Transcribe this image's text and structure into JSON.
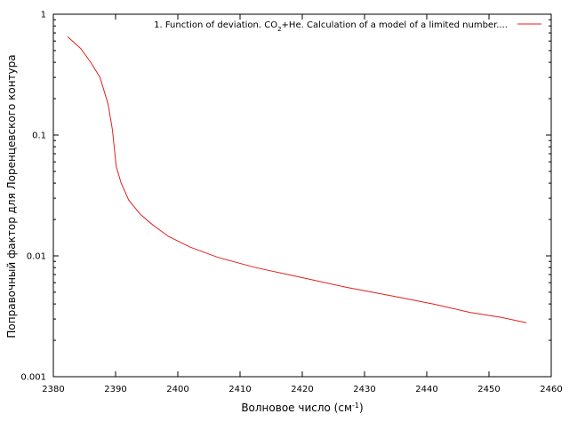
{
  "colors": {
    "background": "#ffffff",
    "axis": "#000000",
    "series": "#e0201c"
  },
  "chart_data": {
    "type": "line",
    "title": "",
    "xlabel": {
      "main": "Волновое число (см",
      "sup": "-1",
      "close": ")"
    },
    "ylabel": "Поправочный фактор для Лоренцевского контура",
    "xlim": [
      2380,
      2460
    ],
    "ylim": [
      0.001,
      1
    ],
    "yscale": "log",
    "grid": false,
    "legend_position": "top-right",
    "x_ticks": [
      2380,
      2390,
      2400,
      2410,
      2420,
      2430,
      2440,
      2450,
      2460
    ],
    "x_tick_labels": [
      "2380",
      "2390",
      "2400",
      "2410",
      "2420",
      "2430",
      "2440",
      "2450",
      "2460"
    ],
    "y_ticks": [
      1,
      0.1,
      0.01,
      0.001
    ],
    "y_tick_labels": [
      "1",
      "0.1",
      "0.01",
      "0.001"
    ],
    "series": [
      {
        "name": "1. Function of deviation. CO2+He. Calculation of a model of a limited number...",
        "legend_parts": {
          "before": "1. Function of deviation. CO",
          "sub": "2",
          "after": "+He. Calculation of a model of a limited number...."
        },
        "color": "#e0201c",
        "x": [
          2382.3,
          2384.4,
          2386.0,
          2387.5,
          2388.8,
          2389.5,
          2390.1,
          2390.9,
          2392.1,
          2394.0,
          2396.0,
          2398.5,
          2402.0,
          2406.5,
          2412.5,
          2420.0,
          2427.0,
          2435.0,
          2441.0,
          2447.0,
          2452.0,
          2456.0
        ],
        "values": [
          0.65,
          0.52,
          0.4,
          0.3,
          0.18,
          0.11,
          0.055,
          0.04,
          0.029,
          0.022,
          0.018,
          0.0145,
          0.0118,
          0.0097,
          0.008,
          0.0066,
          0.0055,
          0.0046,
          0.004,
          0.0034,
          0.0031,
          0.0028
        ]
      }
    ]
  }
}
